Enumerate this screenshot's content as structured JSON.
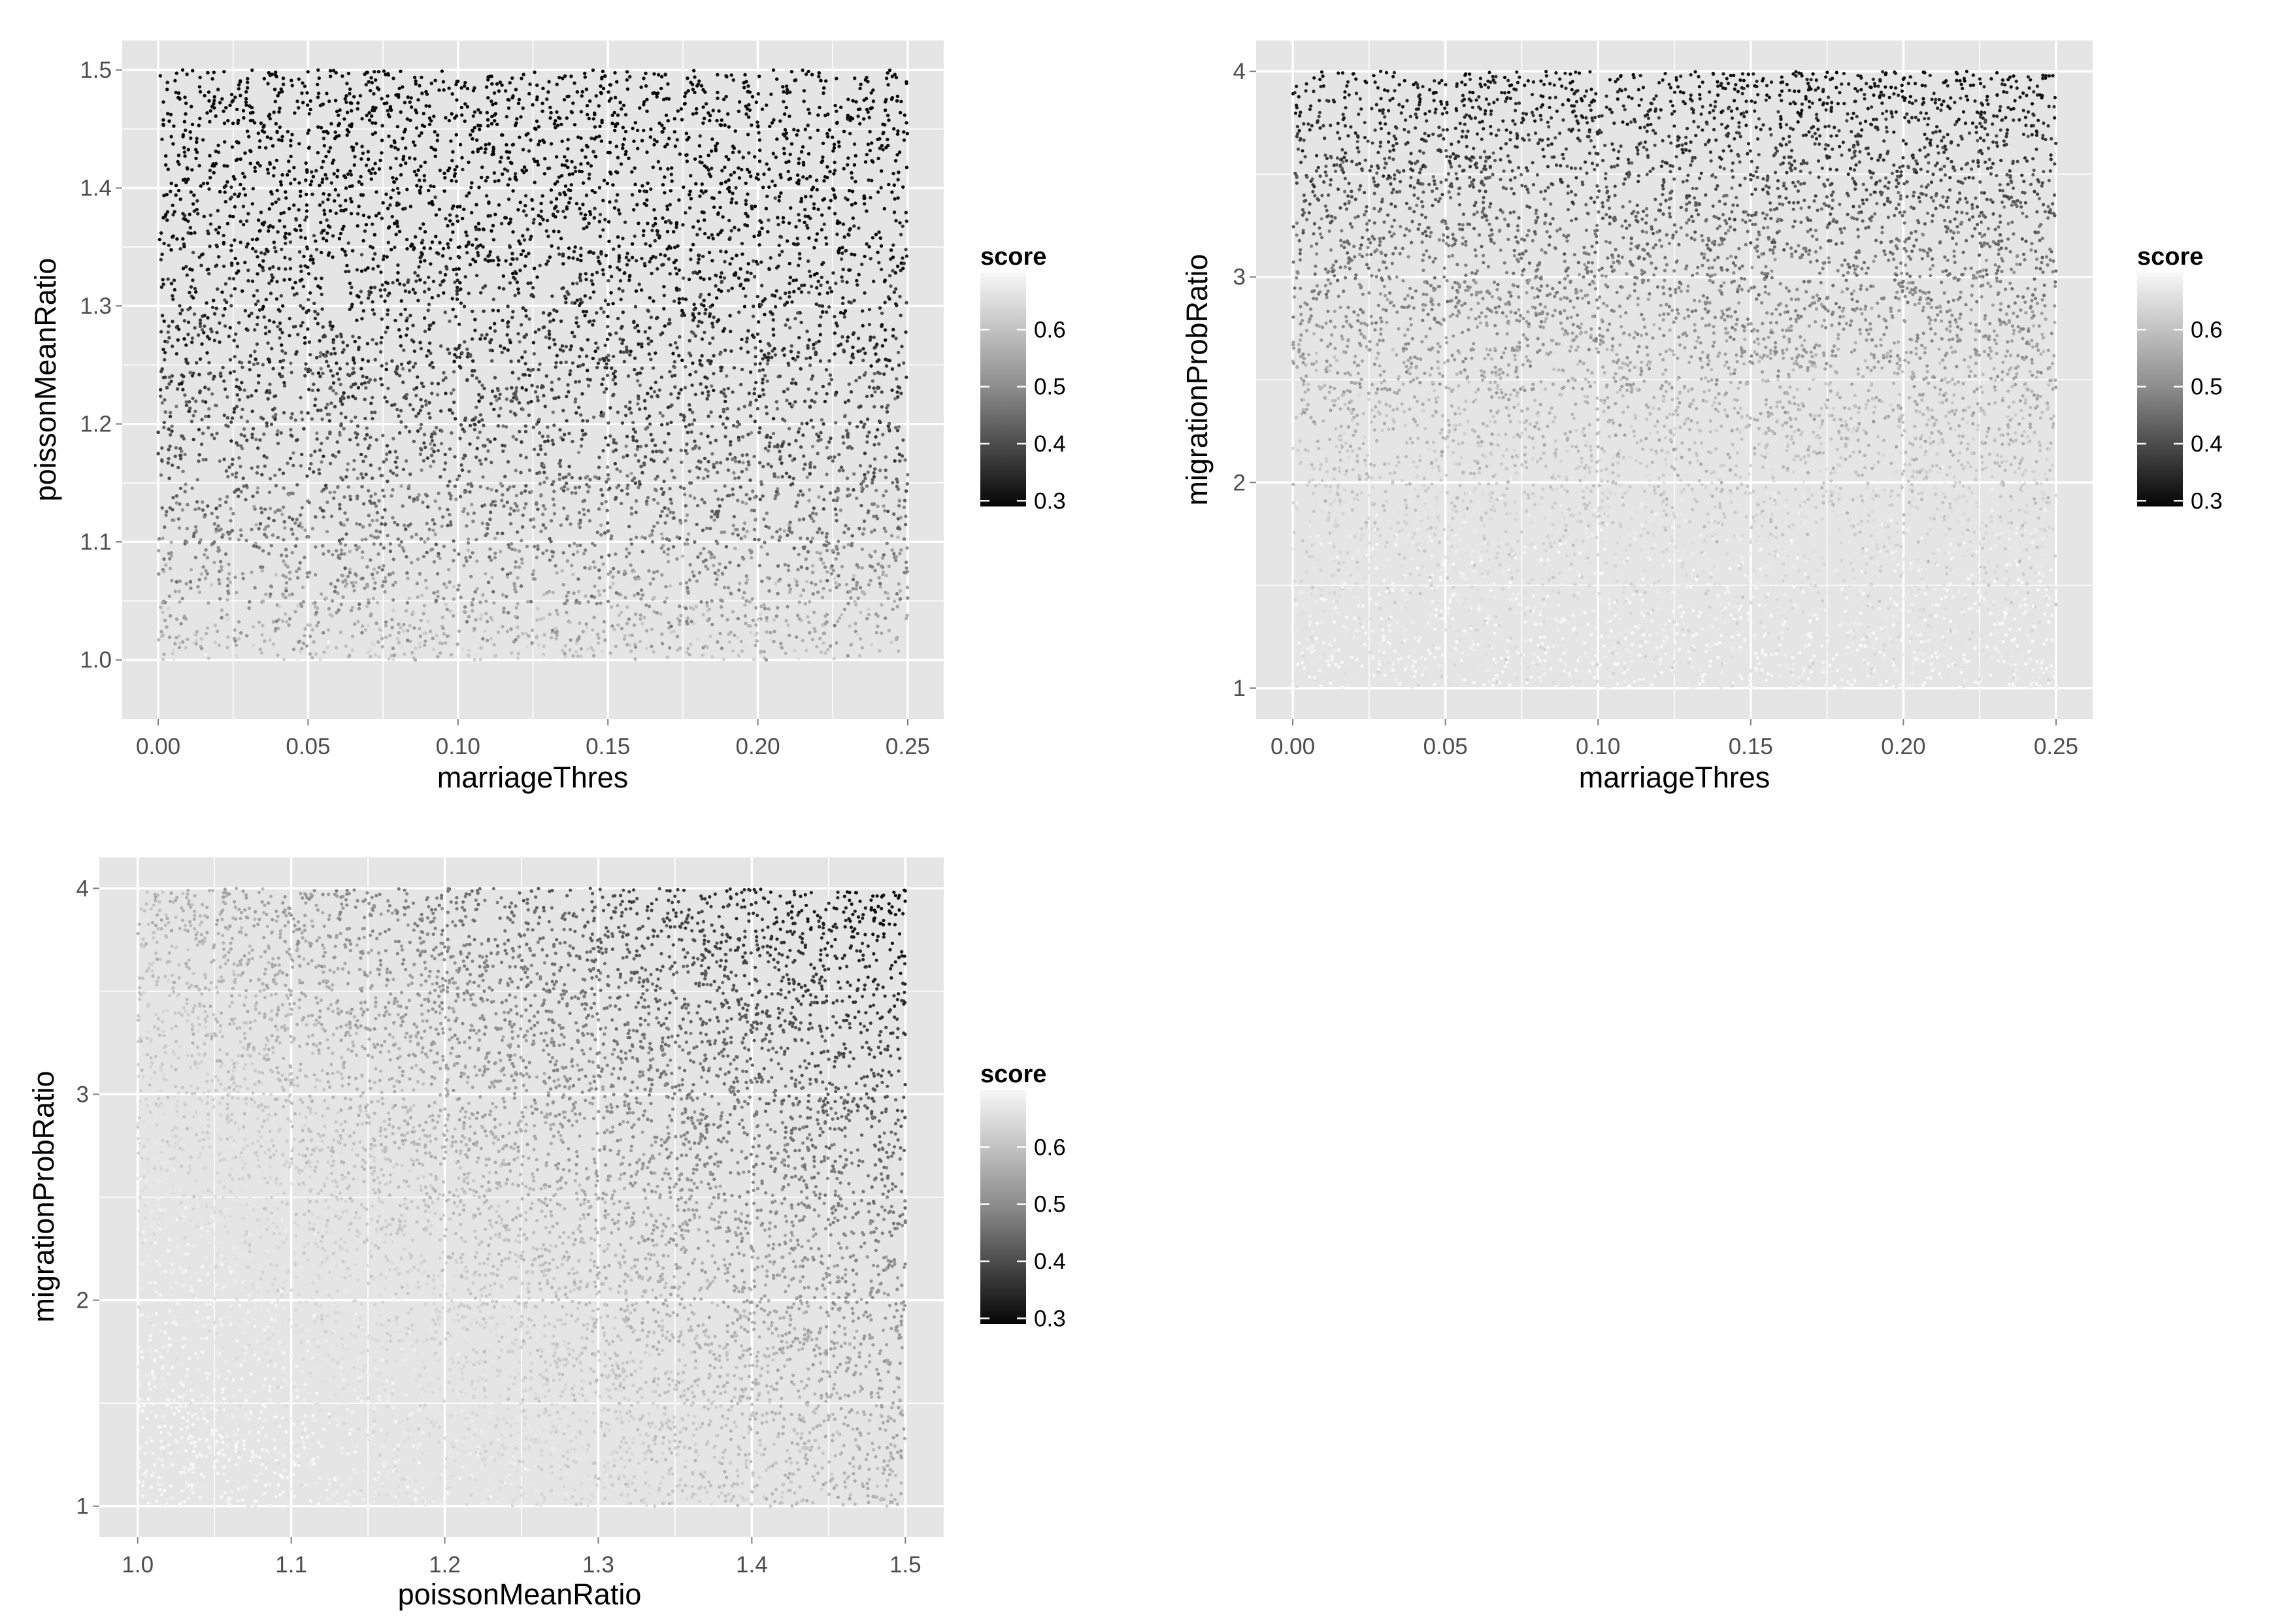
{
  "chart_data": [
    {
      "type": "scatter",
      "xlabel": "marriageThres",
      "ylabel": "poissonMeanRatio",
      "x_ticks": [
        "0.00",
        "0.05",
        "0.10",
        "0.15",
        "0.20",
        "0.25"
      ],
      "x_tick_values": [
        0.0,
        0.05,
        0.1,
        0.15,
        0.2,
        0.25
      ],
      "y_ticks": [
        "1.0",
        "1.1",
        "1.2",
        "1.3",
        "1.4",
        "1.5"
      ],
      "y_tick_values": [
        1.0,
        1.1,
        1.2,
        1.3,
        1.4,
        1.5
      ],
      "xlim": [
        -0.012,
        0.262
      ],
      "ylim": [
        0.95,
        1.525
      ],
      "x_range": [
        0.0,
        0.25
      ],
      "y_range": [
        1.0,
        1.5
      ],
      "color_variable": "score",
      "pattern": "score decreases as poissonMeanRatio increases; light near 1.0, dark near 1.5",
      "legend": {
        "title": "score",
        "ticks": [
          "0.6",
          "0.5",
          "0.4",
          "0.3"
        ],
        "tick_values": [
          0.6,
          0.5,
          0.4,
          0.3
        ],
        "range": [
          0.29,
          0.7
        ],
        "position": "right"
      },
      "grid": true
    },
    {
      "type": "scatter",
      "xlabel": "marriageThres",
      "ylabel": "migrationProbRatio",
      "x_ticks": [
        "0.00",
        "0.05",
        "0.10",
        "0.15",
        "0.20",
        "0.25"
      ],
      "x_tick_values": [
        0.0,
        0.05,
        0.1,
        0.15,
        0.2,
        0.25
      ],
      "y_ticks": [
        "1",
        "2",
        "3",
        "4"
      ],
      "y_tick_values": [
        1,
        2,
        3,
        4
      ],
      "xlim": [
        -0.012,
        0.262
      ],
      "ylim": [
        0.85,
        4.15
      ],
      "x_range": [
        0.0,
        0.25
      ],
      "y_range": [
        1.0,
        4.0
      ],
      "color_variable": "score",
      "pattern": "score decreases strongly as migrationProbRatio increases; light near 1, dark near 4",
      "legend": {
        "title": "score",
        "ticks": [
          "0.6",
          "0.5",
          "0.4",
          "0.3"
        ],
        "tick_values": [
          0.6,
          0.5,
          0.4,
          0.3
        ],
        "range": [
          0.29,
          0.7
        ],
        "position": "right"
      },
      "grid": true
    },
    {
      "type": "scatter",
      "xlabel": "poissonMeanRatio",
      "ylabel": "migrationProbRatio",
      "x_ticks": [
        "1.0",
        "1.1",
        "1.2",
        "1.3",
        "1.4",
        "1.5"
      ],
      "x_tick_values": [
        1.0,
        1.1,
        1.2,
        1.3,
        1.4,
        1.5
      ],
      "y_ticks": [
        "1",
        "2",
        "3",
        "4"
      ],
      "y_tick_values": [
        1,
        2,
        3,
        4
      ],
      "xlim": [
        0.975,
        1.525
      ],
      "ylim": [
        0.85,
        4.15
      ],
      "x_range": [
        1.0,
        1.5
      ],
      "y_range": [
        1.0,
        4.0
      ],
      "color_variable": "score",
      "pattern": "score lowest at high poissonMeanRatio and high migrationProbRatio (upper-right dark), lightest at lower-left",
      "legend": {
        "title": "score",
        "ticks": [
          "0.6",
          "0.5",
          "0.4",
          "0.3"
        ],
        "tick_values": [
          0.6,
          0.5,
          0.4,
          0.3
        ],
        "range": [
          0.29,
          0.7
        ],
        "position": "right"
      },
      "grid": true
    }
  ]
}
